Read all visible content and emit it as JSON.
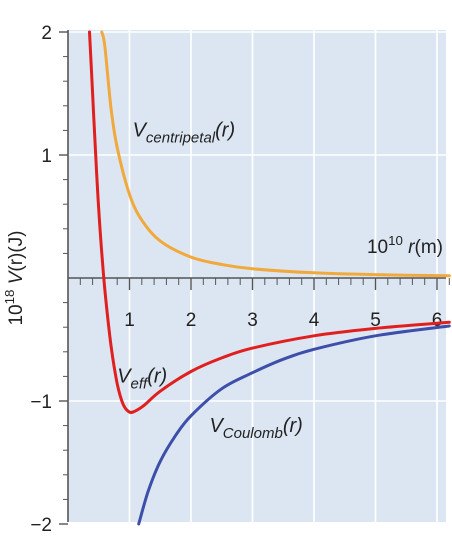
{
  "chart_data": {
    "type": "line",
    "title": "",
    "xlabel": "10^10 r(m)",
    "ylabel": "10^18 V(r)(J)",
    "xlim": [
      0,
      6.2
    ],
    "ylim": [
      -2,
      2
    ],
    "x_ticks": [
      "1",
      "2",
      "3",
      "4",
      "5",
      "6"
    ],
    "y_ticks": [
      "2",
      "1",
      "−1",
      "−2"
    ],
    "grid": true,
    "series": [
      {
        "name": "V_centripetal(r)",
        "color": "#f0a93a",
        "x": [
          0.55,
          0.6,
          0.7,
          0.8,
          1.0,
          1.2,
          1.5,
          2.0,
          2.5,
          3.0,
          4.0,
          5.0,
          6.2
        ],
        "y": [
          2.0,
          1.88,
          1.38,
          1.06,
          0.68,
          0.47,
          0.3,
          0.17,
          0.11,
          0.075,
          0.042,
          0.027,
          0.018
        ]
      },
      {
        "name": "V_eff(r)",
        "color": "#e0201f",
        "x": [
          0.35,
          0.4,
          0.45,
          0.5,
          0.55,
          0.6,
          0.7,
          0.8,
          0.9,
          1.0,
          1.1,
          1.25,
          1.5,
          2.0,
          2.5,
          3.0,
          4.0,
          5.0,
          6.2
        ],
        "y": [
          2.0,
          1.5,
          1.0,
          0.55,
          0.2,
          -0.1,
          -0.55,
          -0.86,
          -1.03,
          -1.09,
          -1.08,
          -1.03,
          -0.92,
          -0.76,
          -0.65,
          -0.57,
          -0.47,
          -0.41,
          -0.36
        ]
      },
      {
        "name": "V_Coulomb(r)",
        "color": "#3d4fa8",
        "x": [
          1.15,
          1.3,
          1.5,
          1.75,
          2.0,
          2.5,
          3.0,
          3.5,
          4.0,
          5.0,
          6.2
        ],
        "y": [
          -2.0,
          -1.74,
          -1.49,
          -1.28,
          -1.12,
          -0.9,
          -0.77,
          -0.66,
          -0.58,
          -0.47,
          -0.39
        ]
      }
    ],
    "annotations": [
      {
        "text": "V",
        "sub": "centripetal",
        "suffix": "(r)",
        "x": 1.05,
        "y": 1.15
      },
      {
        "text": "V",
        "sub": "eff",
        "suffix": "(r)",
        "x": 0.8,
        "y": -0.85
      },
      {
        "text": "V",
        "sub": "Coulomb",
        "suffix": "(r)",
        "x": 2.3,
        "y": -1.25
      }
    ]
  }
}
